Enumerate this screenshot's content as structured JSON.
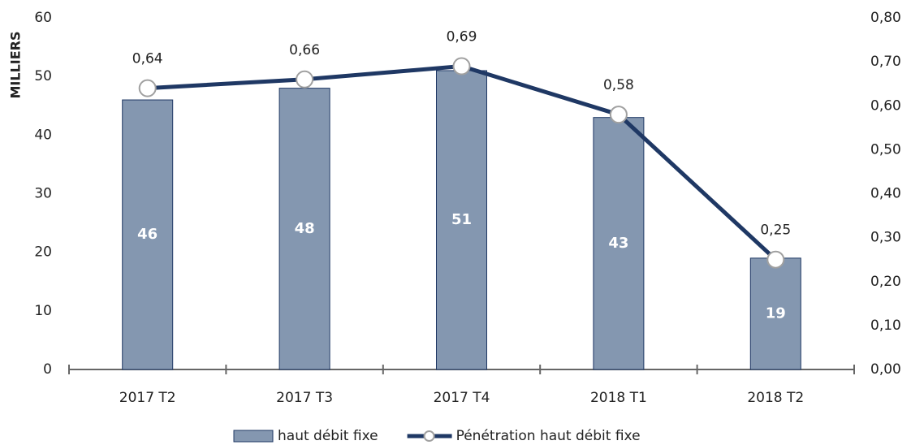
{
  "chart_data": {
    "type": "bar",
    "ylabel": "MILLIERS",
    "categories": [
      "2017 T2",
      "2017 T3",
      "2017 T4",
      "2018 T1",
      "2018 T2"
    ],
    "series": [
      {
        "name": "haut débit fixe",
        "type": "bar",
        "color": "#8497b0",
        "values": [
          46,
          48,
          51,
          43,
          19
        ]
      },
      {
        "name": "Pénétration haut débit fixe",
        "type": "line",
        "axis": "y2",
        "color": "#1f3864",
        "values": [
          0.64,
          0.66,
          0.69,
          0.58,
          0.25
        ],
        "value_labels": [
          "0,64",
          "0,66",
          "0,69",
          "0,58",
          "0,25"
        ]
      }
    ],
    "ylim": [
      0,
      60
    ],
    "yticks": [
      0,
      10,
      20,
      30,
      40,
      50,
      60
    ],
    "y2lim": [
      0,
      0.8
    ],
    "y2ticks": [
      {
        "value": 0,
        "label": "0,00"
      },
      {
        "value": 0.1,
        "label": "0,10"
      },
      {
        "value": 0.2,
        "label": "0,20"
      },
      {
        "value": 0.3,
        "label": "0,30"
      },
      {
        "value": 0.4,
        "label": "0,40"
      },
      {
        "value": 0.5,
        "label": "0,50"
      },
      {
        "value": 0.6,
        "label": "0,60"
      },
      {
        "value": 0.7,
        "label": "0,70"
      },
      {
        "value": 0.8,
        "label": "0,80"
      }
    ],
    "legend": "bottom"
  }
}
